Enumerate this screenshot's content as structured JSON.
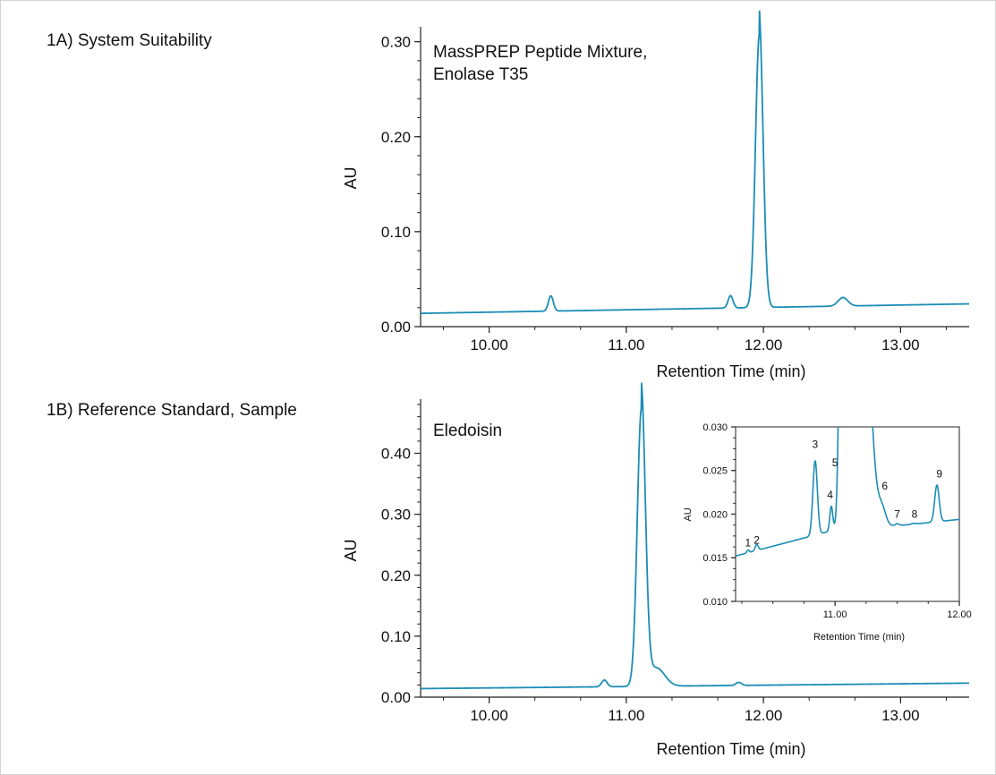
{
  "panel_labels": {
    "a": "1A) System Suitability",
    "b": "1B) Reference Standard, Sample"
  },
  "colors": {
    "trace": "#1b8db5",
    "axis": "#222222"
  },
  "chart_data": [
    {
      "id": "a",
      "type": "line",
      "annotation": [
        "MassPREP Peptide Mixture,",
        "Enolase T35"
      ],
      "xlabel": "Retention Time (min)",
      "ylabel": "AU",
      "xlim": [
        9.5,
        13.5
      ],
      "ylim": [
        0,
        0.31
      ],
      "xticks": [
        "10.00",
        "11.00",
        "12.00",
        "13.00"
      ],
      "yticks": [
        "0.00",
        "0.10",
        "0.20",
        "0.30"
      ],
      "baseline": [
        [
          9.5,
          0.014
        ],
        [
          13.5,
          0.024
        ]
      ],
      "peaks": [
        {
          "x": 10.45,
          "h": 0.016,
          "w": 0.018
        },
        {
          "x": 11.76,
          "h": 0.013,
          "w": 0.018
        },
        {
          "x": 11.97,
          "h": 0.287,
          "w": 0.028,
          "tail": 0.012
        },
        {
          "x": 12.58,
          "h": 0.009,
          "w": 0.035
        }
      ]
    },
    {
      "id": "b",
      "type": "line",
      "annotation": [
        "Eledoisin"
      ],
      "xlabel": "Retention Time (min)",
      "ylabel": "AU",
      "xlim": [
        9.5,
        13.5
      ],
      "ylim": [
        0,
        0.48
      ],
      "xticks": [
        "10.00",
        "11.00",
        "12.00",
        "13.00"
      ],
      "yticks": [
        "0.00",
        "0.10",
        "0.20",
        "0.30",
        "0.40"
      ],
      "baseline": [
        [
          9.5,
          0.014
        ],
        [
          13.5,
          0.023
        ]
      ],
      "peaks": [
        {
          "x": 10.84,
          "h": 0.011,
          "w": 0.02
        },
        {
          "x": 11.11,
          "h": 0.45,
          "w": 0.03,
          "tail": 0.02
        },
        {
          "x": 11.22,
          "h": 0.03,
          "w": 0.06
        },
        {
          "x": 11.82,
          "h": 0.005,
          "w": 0.02
        }
      ]
    },
    {
      "id": "inset",
      "type": "line",
      "xlabel": "Retention Time (min)",
      "ylabel": "AU",
      "xlim": [
        10.2,
        12.0
      ],
      "ylim": [
        0.01,
        0.03
      ],
      "xticks": [
        "11.00",
        "12.00"
      ],
      "yticks": [
        "0.010",
        "0.015",
        "0.020",
        "0.025",
        "0.030"
      ],
      "baseline": [
        [
          10.2,
          0.0152
        ],
        [
          11.0,
          0.0182
        ],
        [
          11.6,
          0.0188
        ],
        [
          12.0,
          0.0194
        ]
      ],
      "peaks": [
        {
          "x": 10.3,
          "h": 0.0003,
          "w": 0.01
        },
        {
          "x": 10.37,
          "h": 0.0007,
          "w": 0.012
        },
        {
          "x": 10.84,
          "h": 0.0085,
          "w": 0.018
        },
        {
          "x": 10.97,
          "h": 0.0028,
          "w": 0.012
        },
        {
          "x": 11.04,
          "h": 0.0065,
          "w": 0.016
        },
        {
          "x": 11.11,
          "h": 0.45,
          "w": 0.03,
          "tail": 0.02
        },
        {
          "x": 11.22,
          "h": 0.03,
          "w": 0.06
        },
        {
          "x": 11.38,
          "h": 0.0018,
          "w": 0.03
        },
        {
          "x": 11.5,
          "h": 0.0002,
          "w": 0.015
        },
        {
          "x": 11.63,
          "h": 0.0001,
          "w": 0.015
        },
        {
          "x": 11.82,
          "h": 0.0042,
          "w": 0.018
        }
      ],
      "peak_labels": [
        {
          "label": "1",
          "x": 10.3,
          "y": 0.0163
        },
        {
          "label": "2",
          "x": 10.37,
          "y": 0.0166
        },
        {
          "label": "3",
          "x": 10.84,
          "y": 0.0276
        },
        {
          "label": "4",
          "x": 10.96,
          "y": 0.0218
        },
        {
          "label": "5",
          "x": 11.0,
          "y": 0.0255
        },
        {
          "label": "6",
          "x": 11.4,
          "y": 0.0228
        },
        {
          "label": "7",
          "x": 11.5,
          "y": 0.0196
        },
        {
          "label": "8",
          "x": 11.64,
          "y": 0.0196
        },
        {
          "label": "9",
          "x": 11.84,
          "y": 0.0242
        }
      ]
    }
  ]
}
